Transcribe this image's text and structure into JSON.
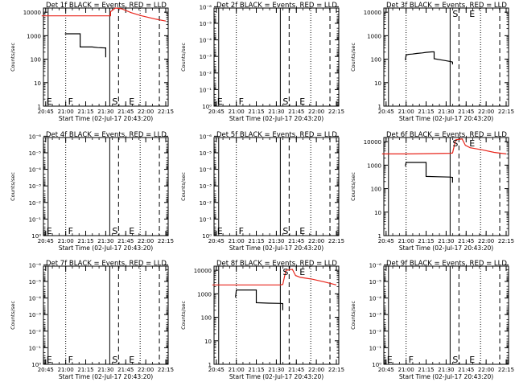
{
  "colors": {
    "events": "#000000",
    "lld": "#e8261c",
    "axis": "#000000",
    "background": "#ffffff"
  },
  "xtick_labels": [
    "20:45",
    "21:00",
    "21:15",
    "21:30",
    "21:45",
    "22:00",
    "22:15"
  ],
  "chart_data": [
    {
      "type": "line",
      "title": "Det 1f BLACK = Events, RED = LLD",
      "ylabel": "Counts/sec",
      "xlabel": "Start Time (02-Jul-17 20:43:20)",
      "ylim": [
        1,
        15000
      ],
      "yscale": "log",
      "ytick_labels": [
        "1",
        "10",
        "100",
        "1000",
        "10000"
      ],
      "yticks": [
        1,
        10,
        100,
        1000,
        10000
      ],
      "letters": [
        "E",
        "F",
        "S",
        "E"
      ],
      "series": [
        {
          "name": "Events",
          "color": "#000000",
          "points": [
            [
              20.99,
              1200
            ],
            [
              21.0,
              1200
            ],
            [
              21.1,
              1200
            ],
            [
              21.18,
              1200
            ],
            [
              21.18,
              330
            ],
            [
              21.33,
              330
            ],
            [
              21.4,
              310
            ],
            [
              21.5,
              300
            ],
            [
              21.5,
              120
            ]
          ]
        },
        {
          "name": "LLD",
          "color": "#e8261c",
          "points": [
            [
              20.7,
              7000
            ],
            [
              21.0,
              7000
            ],
            [
              21.3,
              7000
            ],
            [
              21.56,
              7000
            ],
            [
              21.56,
              10500
            ],
            [
              21.62,
              15000
            ],
            [
              21.7,
              14000
            ],
            [
              21.82,
              9500
            ],
            [
              21.95,
              7000
            ],
            [
              22.13,
              5000
            ],
            [
              22.25,
              4200
            ]
          ]
        }
      ]
    },
    {
      "type": "line",
      "title": "Det 2f BLACK = Events, RED = LLD",
      "ylabel": "Counts/sec",
      "xlabel": "Start Time (02-Jul-17 20:43:20)",
      "ylim": [
        1,
        1.2e-06
      ],
      "yscale": "log",
      "ytick_labels": [
        "10⁰",
        "10⁻¹",
        "10⁻²",
        "10⁻³",
        "10⁻⁴",
        "10⁻⁵",
        "10⁻⁶"
      ],
      "yticks": [
        1,
        0.1,
        0.01,
        0.001,
        0.0001,
        1e-05,
        1e-06
      ],
      "letters": [
        "E",
        "F",
        "S",
        "E"
      ],
      "series": []
    },
    {
      "type": "line",
      "title": "Det 3f BLACK = Events, RED = LLD",
      "ylabel": "Counts/sec",
      "xlabel": "Start Time (02-Jul-17 20:43:20)",
      "ylim": [
        1,
        15000
      ],
      "yscale": "log",
      "ytick_labels": [
        "1",
        "10",
        "100",
        "1000",
        "10000"
      ],
      "yticks": [
        1,
        10,
        100,
        1000,
        10000
      ],
      "letters": [
        "S",
        "E"
      ],
      "series": [
        {
          "name": "Events",
          "color": "#000000",
          "points": [
            [
              20.99,
              90
            ],
            [
              21.0,
              150
            ],
            [
              21.03,
              160
            ],
            [
              21.08,
              165
            ],
            [
              21.13,
              175
            ],
            [
              21.2,
              185
            ],
            [
              21.25,
              195
            ],
            [
              21.32,
              205
            ],
            [
              21.35,
              205
            ],
            [
              21.35,
              105
            ],
            [
              21.42,
              95
            ],
            [
              21.48,
              88
            ],
            [
              21.55,
              80
            ],
            [
              21.58,
              75
            ],
            [
              21.58,
              60
            ]
          ]
        }
      ]
    },
    {
      "type": "line",
      "title": "Det 4f BLACK = Events, RED = LLD",
      "ylabel": "Counts/sec",
      "xlabel": "Start Time (02-Jul-17 20:43:20)",
      "ylim": [
        1,
        1.2e-06
      ],
      "yscale": "log",
      "ytick_labels": [
        "10⁰",
        "10⁻¹",
        "10⁻²",
        "10⁻³",
        "10⁻⁴",
        "10⁻⁵",
        "10⁻⁶"
      ],
      "yticks": [
        1,
        0.1,
        0.01,
        0.001,
        0.0001,
        1e-05,
        1e-06
      ],
      "letters": [
        "E",
        "F",
        "S",
        "E"
      ],
      "series": []
    },
    {
      "type": "line",
      "title": "Det 5f BLACK = Events, RED = LLD",
      "ylabel": "Counts/sec",
      "xlabel": "Start Time (02-Jul-17 20:43:20)",
      "ylim": [
        1,
        1.2e-06
      ],
      "yscale": "log",
      "ytick_labels": [
        "10⁰",
        "10⁻¹",
        "10⁻²",
        "10⁻³",
        "10⁻⁴",
        "10⁻⁵",
        "10⁻⁶"
      ],
      "yticks": [
        1,
        0.1,
        0.01,
        0.001,
        0.0001,
        1e-05,
        1e-06
      ],
      "letters": [
        "E",
        "F",
        "S",
        "E"
      ],
      "series": []
    },
    {
      "type": "line",
      "title": "Det 6f BLACK = Events, RED = LLD",
      "ylabel": "Counts/sec",
      "xlabel": "Start Time (02-Jul-17 20:43:20)",
      "ylim": [
        1,
        15000
      ],
      "yscale": "log",
      "ytick_labels": [
        "1",
        "10",
        "100",
        "1000",
        "10000"
      ],
      "yticks": [
        1,
        10,
        100,
        1000,
        10000
      ],
      "letters": [
        "S",
        "E"
      ],
      "series": [
        {
          "name": "Events",
          "color": "#000000",
          "points": [
            [
              20.99,
              900
            ],
            [
              21.0,
              1300
            ],
            [
              21.1,
              1300
            ],
            [
              21.2,
              1300
            ],
            [
              21.25,
              1300
            ],
            [
              21.25,
              330
            ],
            [
              21.4,
              320
            ],
            [
              21.55,
              310
            ],
            [
              21.58,
              300
            ],
            [
              21.58,
              180
            ]
          ]
        },
        {
          "name": "LLD",
          "color": "#e8261c",
          "points": [
            [
              20.7,
              3000
            ],
            [
              21.0,
              3000
            ],
            [
              21.3,
              3100
            ],
            [
              21.55,
              3200
            ],
            [
              21.58,
              3300
            ],
            [
              21.62,
              12000
            ],
            [
              21.7,
              13000
            ],
            [
              21.74,
              7000
            ],
            [
              21.8,
              5500
            ],
            [
              21.95,
              4500
            ],
            [
              22.1,
              3500
            ],
            [
              22.25,
              3000
            ]
          ]
        }
      ]
    },
    {
      "type": "line",
      "title": "Det 7f BLACK = Events, RED = LLD",
      "ylabel": "Counts/sec",
      "xlabel": "Start Time (02-Jul-17 20:43:20)",
      "ylim": [
        1,
        1.2e-06
      ],
      "yscale": "log",
      "ytick_labels": [
        "10⁰",
        "10⁻¹",
        "10⁻²",
        "10⁻³",
        "10⁻⁴",
        "10⁻⁵",
        "10⁻⁶"
      ],
      "yticks": [
        1,
        0.1,
        0.01,
        0.001,
        0.0001,
        1e-05,
        1e-06
      ],
      "letters": [
        "E",
        "F",
        "S",
        "E"
      ],
      "series": []
    },
    {
      "type": "line",
      "title": "Det 8f BLACK = Events, RED = LLD",
      "ylabel": "Counts/sec",
      "xlabel": "Start Time (02-Jul-17 20:43:20)",
      "ylim": [
        1,
        15000
      ],
      "yscale": "log",
      "ytick_labels": [
        "1",
        "10",
        "100",
        "1000",
        "10000"
      ],
      "yticks": [
        1,
        10,
        100,
        1000,
        10000
      ],
      "letters": [
        "S",
        "E"
      ],
      "series": [
        {
          "name": "Events",
          "color": "#000000",
          "points": [
            [
              20.99,
              700
            ],
            [
              21.0,
              1450
            ],
            [
              21.1,
              1450
            ],
            [
              21.2,
              1450
            ],
            [
              21.25,
              1450
            ],
            [
              21.25,
              420
            ],
            [
              21.4,
              400
            ],
            [
              21.55,
              390
            ],
            [
              21.58,
              380
            ],
            [
              21.58,
              200
            ]
          ]
        },
        {
          "name": "LLD",
          "color": "#e8261c",
          "points": [
            [
              20.7,
              2400
            ],
            [
              21.0,
              2400
            ],
            [
              21.3,
              2400
            ],
            [
              21.55,
              2400
            ],
            [
              21.58,
              2500
            ],
            [
              21.62,
              10000
            ],
            [
              21.7,
              11000
            ],
            [
              21.74,
              6000
            ],
            [
              21.8,
              5000
            ],
            [
              21.95,
              4200
            ],
            [
              22.1,
              3200
            ],
            [
              22.25,
              2400
            ]
          ]
        }
      ]
    },
    {
      "type": "line",
      "title": "Det 9f BLACK = Events, RED = LLD",
      "ylabel": "Counts/sec",
      "xlabel": "Start Time (02-Jul-17 20:43:20)",
      "ylim": [
        1,
        1.2e-06
      ],
      "yscale": "log",
      "ytick_labels": [
        "10⁰",
        "10⁻¹",
        "10⁻²",
        "10⁻³",
        "10⁻⁴",
        "10⁻⁵",
        "10⁻⁶"
      ],
      "yticks": [
        1,
        0.1,
        0.01,
        0.001,
        0.0001,
        1e-05,
        1e-06
      ],
      "letters": [
        "E",
        "F",
        "S",
        "E"
      ],
      "series": []
    }
  ]
}
